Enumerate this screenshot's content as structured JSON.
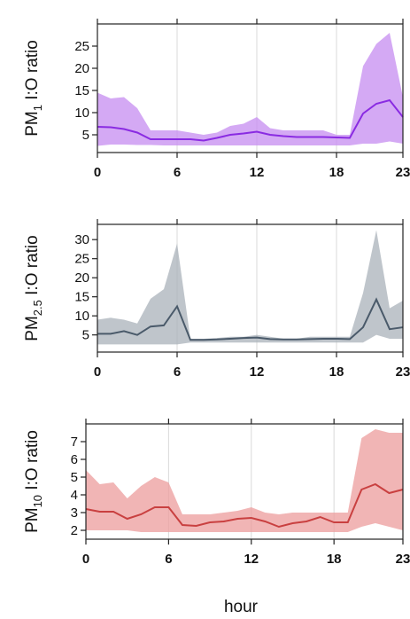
{
  "chart_data": [
    {
      "type": "area",
      "ylabel_prefix": "PM",
      "ylabel_subscript": "1",
      "ylabel_suffix": " I:O ratio",
      "color_line": "#8a2be2",
      "color_band": "#c58cf0",
      "x": [
        0,
        1,
        2,
        3,
        4,
        5,
        6,
        7,
        8,
        9,
        10,
        11,
        12,
        13,
        14,
        15,
        16,
        17,
        18,
        19,
        20,
        21,
        22,
        23
      ],
      "mean": [
        6.8,
        6.7,
        6.3,
        5.5,
        4.0,
        4.0,
        4.0,
        4.0,
        3.7,
        4.3,
        5.0,
        5.3,
        5.7,
        5.0,
        4.7,
        4.5,
        4.5,
        4.5,
        4.4,
        4.3,
        9.8,
        12.0,
        12.8,
        9.0
      ],
      "upper": [
        14.5,
        13.2,
        13.5,
        11.0,
        6.0,
        6.0,
        6.0,
        5.5,
        5.0,
        5.5,
        7.0,
        7.5,
        9.0,
        6.5,
        6.0,
        6.0,
        6.0,
        6.0,
        5.0,
        5.0,
        20.5,
        25.5,
        28.0,
        13.5
      ],
      "lower": [
        2.5,
        2.8,
        2.8,
        2.7,
        2.7,
        2.6,
        2.6,
        2.6,
        2.6,
        2.6,
        2.6,
        2.6,
        2.6,
        2.6,
        2.6,
        2.6,
        2.6,
        2.6,
        2.6,
        2.6,
        3.0,
        3.0,
        3.5,
        3.0
      ],
      "xlim": [
        0,
        23
      ],
      "ylim": [
        1,
        30
      ],
      "yticks": [
        5,
        10,
        15,
        20,
        25
      ],
      "xticks": [
        0,
        6,
        12,
        18,
        23
      ],
      "grid": true
    },
    {
      "type": "area",
      "ylabel_prefix": "PM",
      "ylabel_subscript": "2.5",
      "ylabel_suffix": " I:O ratio",
      "color_line": "#4a5a6a",
      "color_band": "#aab1ba",
      "x": [
        0,
        1,
        2,
        3,
        4,
        5,
        6,
        7,
        8,
        9,
        10,
        11,
        12,
        13,
        14,
        15,
        16,
        17,
        18,
        19,
        20,
        21,
        22,
        23
      ],
      "mean": [
        5.3,
        5.3,
        6.0,
        5.0,
        7.2,
        7.5,
        12.5,
        3.7,
        3.7,
        3.8,
        4.0,
        4.2,
        4.3,
        3.9,
        3.8,
        3.8,
        3.9,
        4.0,
        4.0,
        3.9,
        7.0,
        14.3,
        6.5,
        7.0
      ],
      "upper": [
        9.0,
        9.5,
        9.0,
        8.0,
        14.5,
        17.0,
        29.0,
        4.0,
        4.0,
        4.2,
        4.5,
        4.5,
        5.0,
        4.5,
        4.0,
        4.0,
        4.5,
        4.5,
        4.5,
        4.5,
        16.0,
        32.5,
        12.0,
        14.0
      ],
      "lower": [
        2.5,
        2.5,
        2.5,
        2.5,
        2.5,
        2.5,
        2.5,
        3.0,
        3.0,
        3.0,
        3.0,
        3.0,
        3.0,
        3.0,
        3.0,
        3.0,
        3.0,
        3.0,
        3.0,
        3.0,
        3.0,
        5.0,
        4.0,
        4.0
      ],
      "xlim": [
        0,
        23
      ],
      "ylim": [
        0.5,
        34
      ],
      "yticks": [
        5,
        10,
        15,
        20,
        25,
        30
      ],
      "xticks": [
        0,
        6,
        12,
        18,
        23
      ],
      "grid": true
    },
    {
      "type": "area",
      "ylabel_prefix": "PM",
      "ylabel_subscript": "10",
      "ylabel_suffix": " I:O ratio",
      "color_line": "#c94040",
      "color_band": "#ec9c9c",
      "x": [
        0,
        1,
        2,
        3,
        4,
        5,
        6,
        7,
        8,
        9,
        10,
        11,
        12,
        13,
        14,
        15,
        16,
        17,
        18,
        19,
        20,
        21,
        22,
        23
      ],
      "mean": [
        3.2,
        3.05,
        3.05,
        2.65,
        2.9,
        3.3,
        3.3,
        2.3,
        2.25,
        2.45,
        2.5,
        2.65,
        2.7,
        2.5,
        2.2,
        2.4,
        2.5,
        2.75,
        2.45,
        2.45,
        4.3,
        4.6,
        4.1,
        4.3
      ],
      "upper": [
        5.4,
        4.6,
        4.7,
        3.8,
        4.5,
        5.0,
        4.7,
        2.9,
        2.9,
        2.9,
        3.0,
        3.1,
        3.3,
        3.0,
        2.9,
        3.0,
        3.0,
        3.0,
        3.0,
        3.0,
        7.2,
        7.7,
        7.5,
        7.5
      ],
      "lower": [
        2.0,
        2.0,
        2.0,
        2.0,
        1.9,
        1.9,
        1.9,
        1.9,
        1.9,
        1.9,
        1.9,
        1.9,
        1.9,
        1.9,
        1.9,
        1.9,
        1.9,
        1.9,
        1.9,
        1.9,
        2.2,
        2.4,
        2.2,
        2.0
      ],
      "xlim": [
        0,
        23
      ],
      "ylim": [
        1.5,
        8
      ],
      "yticks": [
        2,
        3,
        4,
        5,
        6,
        7
      ],
      "xticks": [
        0,
        6,
        12,
        18,
        23
      ],
      "grid": true
    }
  ],
  "xlabel": "hour"
}
